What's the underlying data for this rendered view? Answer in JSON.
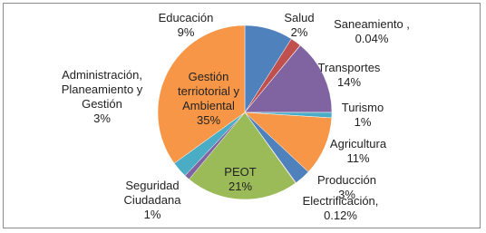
{
  "chart_data": {
    "type": "pie",
    "categories": [
      "Educación",
      "Salud",
      "Saneamiento ,",
      "Transportes",
      "Turismo",
      "Agricultura",
      "Producción",
      "Electrificación,",
      "PEOT",
      "Seguridad Ciudadana",
      "Administración, Planeamiento y Gestión",
      "Gestión terriotorial y Ambiental"
    ],
    "values": [
      9,
      2,
      0.04,
      14,
      1,
      11,
      3,
      0.12,
      21,
      1,
      3,
      35
    ],
    "value_labels": [
      "9%",
      "2%",
      "0.04%",
      "14%",
      "1%",
      "11%",
      "3%",
      "0.12%",
      "21%",
      "1%",
      "3%",
      "35%"
    ],
    "colors": [
      "#4F81BD",
      "#C0504D",
      "#9BBB59",
      "#8064A2",
      "#4BACC6",
      "#F79646",
      "#4F81BD",
      "#C0504D",
      "#9BBB59",
      "#8064A2",
      "#4BACC6",
      "#F79646"
    ]
  }
}
